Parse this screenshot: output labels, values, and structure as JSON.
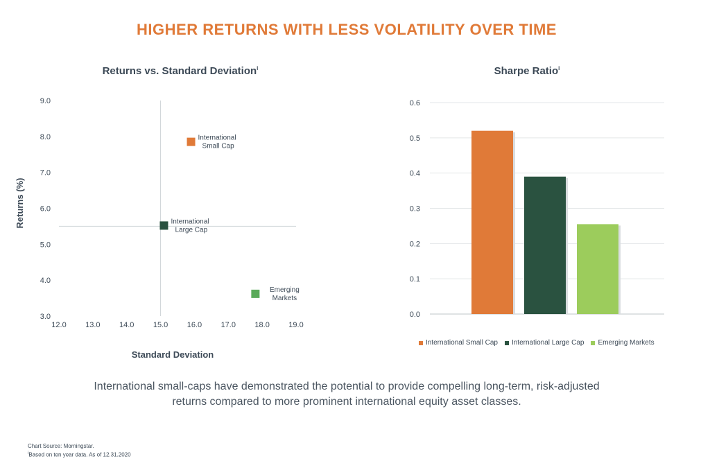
{
  "headline": "HIGHER RETURNS WITH LESS VOLATILITY OVER TIME",
  "caption_line1": "International small-caps have demonstrated the potential to provide compelling long-term, risk-adjusted",
  "caption_line2": "returns compared to more prominent international equity asset classes.",
  "footnote_line1": "Chart Source: Morningstar.",
  "footnote_line2": "Based on ten year data.  As of 12.31.2020",
  "footnote_marker": "i",
  "colors": {
    "accent": "#e07a38",
    "small_cap": "#e07a38",
    "large_cap": "#2a5240",
    "emerging": "#9ccc5c",
    "emerging_scatter": "#5aaa5a"
  },
  "chart_data": [
    {
      "type": "scatter",
      "title": "Returns vs. Standard Deviation",
      "title_marker": "i",
      "xlabel": "Standard Deviation",
      "ylabel": "Returns (%)",
      "xlim": [
        12.0,
        19.0
      ],
      "ylim": [
        3.0,
        9.0
      ],
      "xticks": [
        "12.0",
        "13.0",
        "14.0",
        "15.0",
        "16.0",
        "17.0",
        "18.0",
        "19.0"
      ],
      "yticks": [
        "9.0",
        "8.0",
        "7.0",
        "6.0",
        "5.0",
        "4.0",
        "3.0"
      ],
      "crosshair": {
        "x": 15.0,
        "y": 5.5
      },
      "points": [
        {
          "x": 15.9,
          "y": 7.85,
          "label_line1": "International",
          "label_line2": "Small Cap",
          "color": "#e07a38"
        },
        {
          "x": 15.1,
          "y": 5.52,
          "label_line1": "International",
          "label_line2": "Large Cap",
          "color": "#2a5240"
        },
        {
          "x": 17.8,
          "y": 3.62,
          "label_line1": "Emerging",
          "label_line2": "Markets",
          "color": "#5aaa5a"
        }
      ]
    },
    {
      "type": "bar",
      "title": "Sharpe Ratio",
      "title_marker": "i",
      "ylim": [
        0.0,
        0.6
      ],
      "yticks": [
        "0.6",
        "0.5",
        "0.4",
        "0.3",
        "0.2",
        "0.1",
        "0.0"
      ],
      "categories": [
        "International Small Cap",
        "International Large Cap",
        "Emerging Markets"
      ],
      "values": [
        0.52,
        0.39,
        0.255
      ],
      "colors": [
        "#e07a38",
        "#2a5240",
        "#9ccc5c"
      ],
      "grid": true,
      "legend": "bottom"
    }
  ]
}
